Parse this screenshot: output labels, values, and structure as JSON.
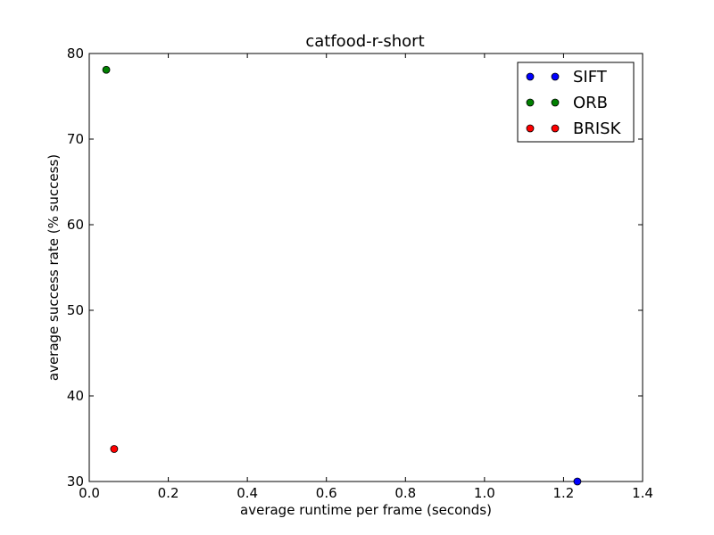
{
  "chart_data": {
    "type": "scatter",
    "title": "catfood-r-short",
    "xlabel": "average runtime per frame (seconds)",
    "ylabel": "average success rate (% success)",
    "xlim": [
      0.0,
      1.4
    ],
    "ylim": [
      30,
      80
    ],
    "xticks": [
      "0.0",
      "0.2",
      "0.4",
      "0.6",
      "0.8",
      "1.0",
      "1.2",
      "1.4"
    ],
    "yticks": [
      "30",
      "40",
      "50",
      "60",
      "70",
      "80"
    ],
    "grid": false,
    "legend_position": "top-right",
    "series": [
      {
        "name": "SIFT",
        "color": "#0000ff",
        "points": [
          {
            "x": 1.235,
            "y": 30.0
          }
        ]
      },
      {
        "name": "ORB",
        "color": "#008000",
        "points": [
          {
            "x": 0.043,
            "y": 78.1
          }
        ]
      },
      {
        "name": "BRISK",
        "color": "#ff0000",
        "points": [
          {
            "x": 0.063,
            "y": 33.8
          }
        ]
      }
    ]
  }
}
